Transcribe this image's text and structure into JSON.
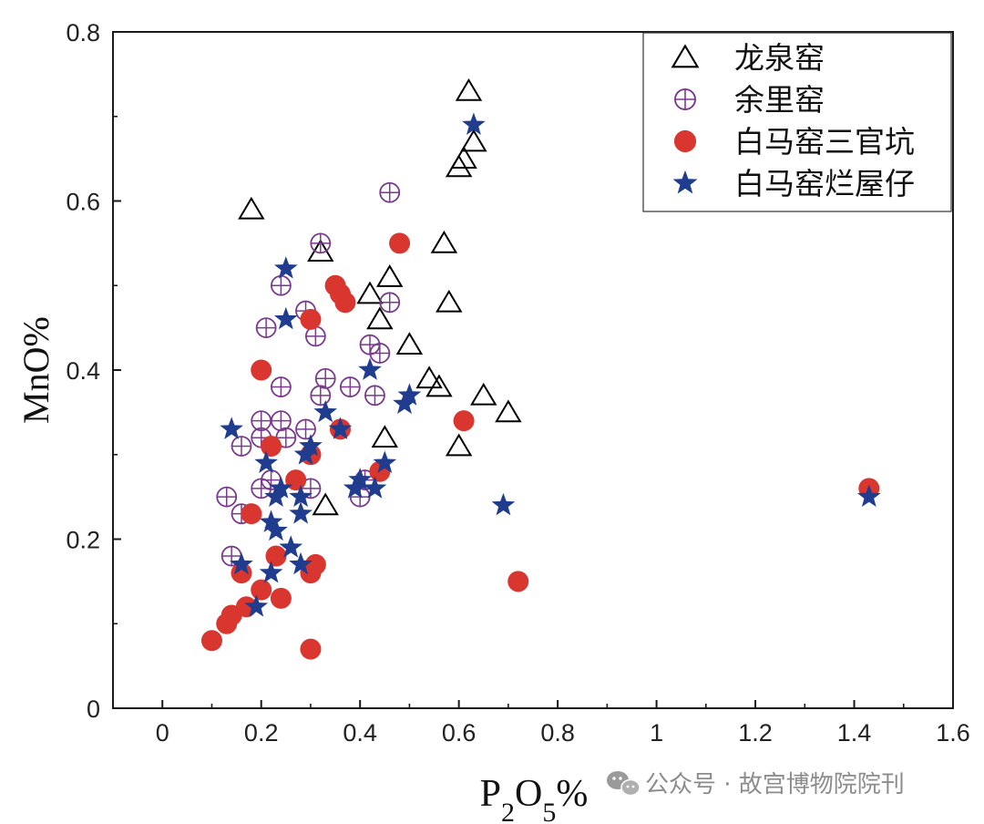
{
  "chart_data": {
    "type": "scatter",
    "xlabel": "P2O5%",
    "ylabel": "MnO%",
    "xlim": [
      -0.1,
      1.6
    ],
    "ylim": [
      0,
      0.8
    ],
    "x_ticks": [
      0,
      0.2,
      0.4,
      0.6,
      0.8,
      1,
      1.2,
      1.4,
      1.6
    ],
    "y_ticks": [
      0,
      0.2,
      0.4,
      0.6,
      0.8
    ],
    "x_tick_labels": [
      "0",
      "0.2",
      "0.4",
      "0.6",
      "0.8",
      "1",
      "1.2",
      "1.4",
      "1.6"
    ],
    "y_tick_labels": [
      "0",
      "0.2",
      "0.4",
      "0.6",
      "0.8"
    ],
    "legend_position": "top-right",
    "series": [
      {
        "name": "龙泉窑",
        "marker": "triangle-open",
        "color": "#000000",
        "points": [
          [
            0.18,
            0.59
          ],
          [
            0.32,
            0.54
          ],
          [
            0.42,
            0.49
          ],
          [
            0.46,
            0.51
          ],
          [
            0.44,
            0.46
          ],
          [
            0.5,
            0.43
          ],
          [
            0.54,
            0.39
          ],
          [
            0.56,
            0.38
          ],
          [
            0.45,
            0.32
          ],
          [
            0.33,
            0.24
          ],
          [
            0.57,
            0.55
          ],
          [
            0.58,
            0.48
          ],
          [
            0.6,
            0.64
          ],
          [
            0.61,
            0.65
          ],
          [
            0.62,
            0.73
          ],
          [
            0.63,
            0.67
          ],
          [
            0.6,
            0.31
          ],
          [
            0.65,
            0.37
          ],
          [
            0.7,
            0.35
          ]
        ]
      },
      {
        "name": "余里窑",
        "marker": "circle-plus",
        "color": "#7a3a8e",
        "points": [
          [
            0.13,
            0.25
          ],
          [
            0.14,
            0.18
          ],
          [
            0.16,
            0.23
          ],
          [
            0.16,
            0.31
          ],
          [
            0.2,
            0.34
          ],
          [
            0.2,
            0.26
          ],
          [
            0.2,
            0.32
          ],
          [
            0.21,
            0.45
          ],
          [
            0.22,
            0.27
          ],
          [
            0.24,
            0.5
          ],
          [
            0.24,
            0.38
          ],
          [
            0.24,
            0.34
          ],
          [
            0.25,
            0.32
          ],
          [
            0.29,
            0.47
          ],
          [
            0.29,
            0.33
          ],
          [
            0.3,
            0.26
          ],
          [
            0.31,
            0.44
          ],
          [
            0.32,
            0.55
          ],
          [
            0.32,
            0.37
          ],
          [
            0.33,
            0.39
          ],
          [
            0.38,
            0.38
          ],
          [
            0.4,
            0.25
          ],
          [
            0.41,
            0.27
          ],
          [
            0.42,
            0.43
          ],
          [
            0.43,
            0.37
          ],
          [
            0.44,
            0.42
          ],
          [
            0.46,
            0.48
          ],
          [
            0.46,
            0.61
          ]
        ]
      },
      {
        "name": "白马窑三官坑",
        "marker": "circle-filled",
        "color": "#d8362f",
        "points": [
          [
            0.1,
            0.08
          ],
          [
            0.13,
            0.1
          ],
          [
            0.14,
            0.11
          ],
          [
            0.16,
            0.16
          ],
          [
            0.17,
            0.12
          ],
          [
            0.18,
            0.23
          ],
          [
            0.2,
            0.14
          ],
          [
            0.2,
            0.4
          ],
          [
            0.22,
            0.31
          ],
          [
            0.23,
            0.18
          ],
          [
            0.24,
            0.13
          ],
          [
            0.27,
            0.27
          ],
          [
            0.3,
            0.3
          ],
          [
            0.3,
            0.46
          ],
          [
            0.3,
            0.16
          ],
          [
            0.31,
            0.17
          ],
          [
            0.3,
            0.07
          ],
          [
            0.35,
            0.5
          ],
          [
            0.36,
            0.49
          ],
          [
            0.37,
            0.48
          ],
          [
            0.36,
            0.33
          ],
          [
            0.44,
            0.28
          ],
          [
            0.48,
            0.55
          ],
          [
            0.61,
            0.34
          ],
          [
            0.72,
            0.15
          ],
          [
            1.43,
            0.26
          ]
        ]
      },
      {
        "name": "白马窑烂屋仔",
        "marker": "star",
        "color": "#1f3c8f",
        "points": [
          [
            0.14,
            0.33
          ],
          [
            0.16,
            0.17
          ],
          [
            0.19,
            0.12
          ],
          [
            0.21,
            0.29
          ],
          [
            0.22,
            0.16
          ],
          [
            0.22,
            0.22
          ],
          [
            0.23,
            0.21
          ],
          [
            0.23,
            0.25
          ],
          [
            0.24,
            0.26
          ],
          [
            0.25,
            0.46
          ],
          [
            0.25,
            0.52
          ],
          [
            0.26,
            0.19
          ],
          [
            0.28,
            0.17
          ],
          [
            0.28,
            0.23
          ],
          [
            0.28,
            0.25
          ],
          [
            0.29,
            0.3
          ],
          [
            0.3,
            0.31
          ],
          [
            0.33,
            0.35
          ],
          [
            0.36,
            0.33
          ],
          [
            0.39,
            0.26
          ],
          [
            0.4,
            0.27
          ],
          [
            0.42,
            0.4
          ],
          [
            0.43,
            0.26
          ],
          [
            0.45,
            0.29
          ],
          [
            0.49,
            0.36
          ],
          [
            0.5,
            0.37
          ],
          [
            0.63,
            0.69
          ],
          [
            0.69,
            0.24
          ],
          [
            1.43,
            0.25
          ]
        ]
      }
    ]
  },
  "watermark": {
    "text": "公众号 · 故宫博物院院刊",
    "icon": "wechat-icon"
  }
}
